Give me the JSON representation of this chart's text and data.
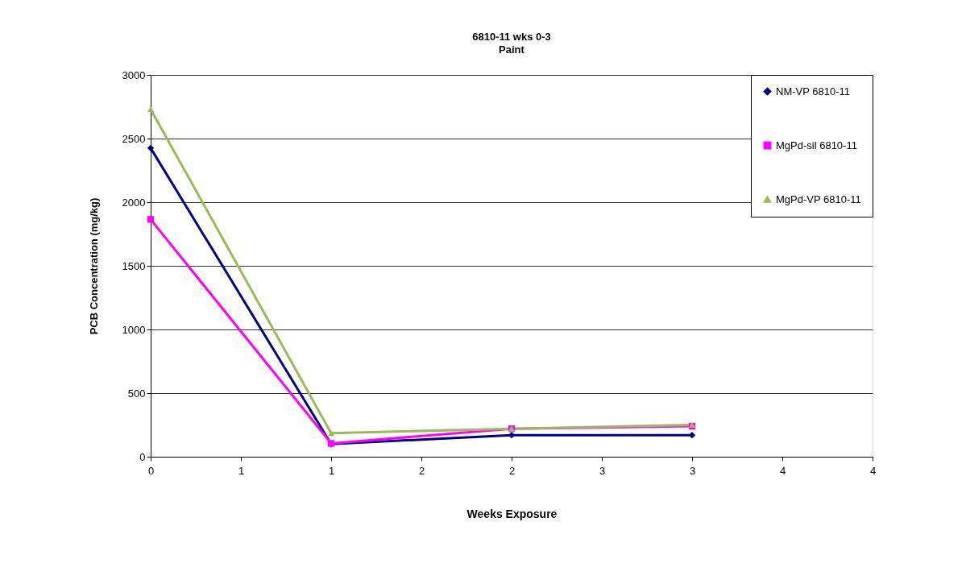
{
  "chart_data": {
    "type": "line",
    "title": "6810-11 wks 0-3",
    "subtitle": "Paint",
    "xlabel": "Weeks Exposure",
    "ylabel": "PCB Concentration (mg/kg)",
    "x": [
      0,
      1,
      2,
      3
    ],
    "series": [
      {
        "name": "NM-VP 6810-11",
        "color": "#000080",
        "marker": "diamond",
        "values": [
          2425,
          100,
          170,
          170
        ]
      },
      {
        "name": "MgPd-sil 6810-11",
        "color": "#ff00ff",
        "marker": "square",
        "values": [
          1865,
          105,
          220,
          240
        ]
      },
      {
        "name": "MgPd-VP 6810-11",
        "color": "#9bbb59",
        "marker": "triangle",
        "values": [
          2730,
          185,
          220,
          250
        ]
      }
    ],
    "xlim": [
      0,
      4
    ],
    "xticks": [
      0,
      {
        "value": 0.5,
        "label": "1"
      },
      1,
      {
        "value": 1.5,
        "label": "2"
      },
      2,
      {
        "value": 2.5,
        "label": "3"
      },
      3,
      {
        "value": 3.5,
        "label": "4"
      },
      4
    ],
    "ylim": [
      0,
      3000
    ],
    "yticks": [
      0,
      500,
      1000,
      1500,
      2000,
      2500,
      3000
    ],
    "grid": "y",
    "legend": "top right",
    "line_style": "solid"
  }
}
